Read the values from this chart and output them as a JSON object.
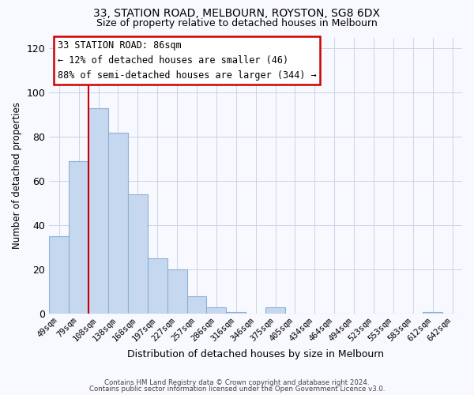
{
  "title1": "33, STATION ROAD, MELBOURN, ROYSTON, SG8 6DX",
  "title2": "Size of property relative to detached houses in Melbourn",
  "xlabel": "Distribution of detached houses by size in Melbourn",
  "ylabel": "Number of detached properties",
  "footnote1": "Contains HM Land Registry data © Crown copyright and database right 2024.",
  "footnote2": "Contains public sector information licensed under the Open Government Licence v3.0.",
  "annotation_line1": "33 STATION ROAD: 86sqm",
  "annotation_line2": "← 12% of detached houses are smaller (46)",
  "annotation_line3": "88% of semi-detached houses are larger (344) →",
  "categories": [
    "49sqm",
    "79sqm",
    "108sqm",
    "138sqm",
    "168sqm",
    "197sqm",
    "227sqm",
    "257sqm",
    "286sqm",
    "316sqm",
    "346sqm",
    "375sqm",
    "405sqm",
    "434sqm",
    "464sqm",
    "494sqm",
    "523sqm",
    "553sqm",
    "583sqm",
    "612sqm",
    "642sqm"
  ],
  "values": [
    35,
    69,
    93,
    82,
    54,
    25,
    20,
    8,
    3,
    1,
    0,
    3,
    0,
    0,
    0,
    0,
    0,
    0,
    0,
    1,
    0
  ],
  "bar_color": "#c5d8f0",
  "bar_edge_color": "#8fb0d0",
  "vline_x": 1.5,
  "vline_color": "#cc0000",
  "annotation_box_color": "#cc0000",
  "ylim": [
    0,
    125
  ],
  "yticks": [
    0,
    20,
    40,
    60,
    80,
    100,
    120
  ],
  "background_color": "#f8f8ff",
  "grid_color": "#c8d4e8"
}
